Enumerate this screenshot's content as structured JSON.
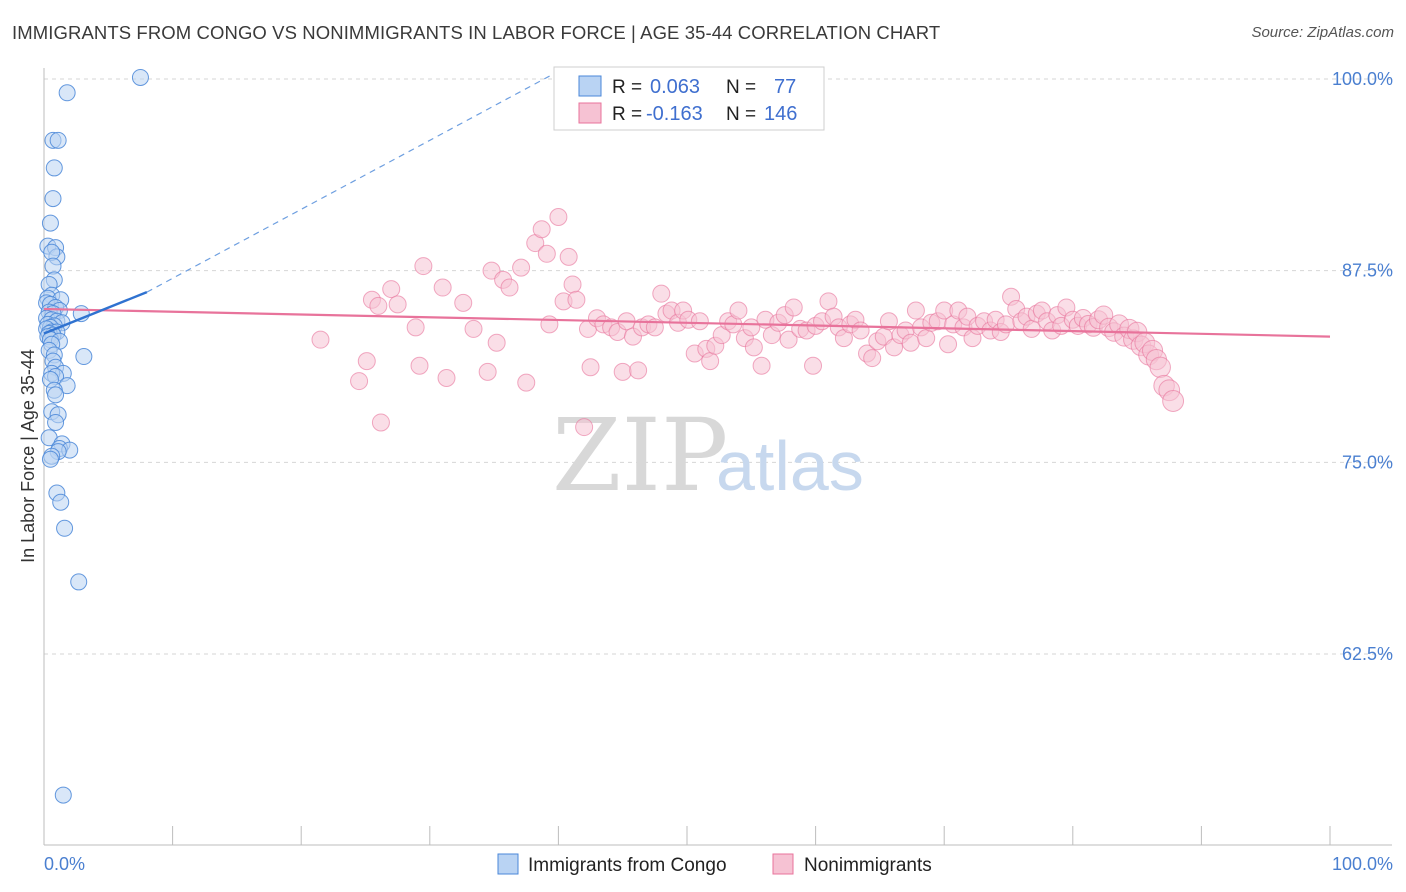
{
  "title": "IMMIGRANTS FROM CONGO VS NONIMMIGRANTS IN LABOR FORCE | AGE 35-44 CORRELATION CHART",
  "source": "Source: ZipAtlas.com",
  "watermark": {
    "zip": "ZIP",
    "atlas": "atlas"
  },
  "colors": {
    "blue": "#4a87d8",
    "blue_fill": "#b9d3f3",
    "pink": "#e8739b",
    "pink_fill": "#f6c2d3",
    "tick": "#4a7fd0"
  },
  "legend": {
    "r_label": "R =",
    "n_label": "N =",
    "rows": [
      {
        "r": "0.063",
        "n": "77",
        "series": "blue"
      },
      {
        "r": "-0.163",
        "n": "146",
        "series": "pink"
      }
    ]
  },
  "chart_data": {
    "type": "scatter",
    "title": "IMMIGRANTS FROM CONGO VS NONIMMIGRANTS IN LABOR FORCE | AGE 35-44 CORRELATION CHART",
    "xlabel": "",
    "ylabel": "In Labor Force | Age 35-44",
    "xlim": [
      0,
      100
    ],
    "ylim": [
      52,
      101.5
    ],
    "x_tick_labels": [
      "0.0%",
      "100.0%"
    ],
    "y_ticks": [
      62.5,
      75.0,
      87.5,
      100.0
    ],
    "y_tick_labels": [
      "62.5%",
      "75.0%",
      "87.5%",
      "100.0%"
    ],
    "grid": true,
    "legend_position": "bottom-center",
    "series": [
      {
        "name": "Immigrants from Congo",
        "color": "#4a87d8",
        "R": 0.063,
        "N": 77,
        "trend": {
          "x": [
            0,
            8
          ],
          "y": [
            83.4,
            86.1
          ],
          "dashed_extension": {
            "x": [
              8,
              40
            ],
            "y": [
              86.1,
              100.5
            ]
          }
        },
        "points": [
          [
            7.5,
            100.1
          ],
          [
            1.8,
            99.1
          ],
          [
            0.7,
            96.0
          ],
          [
            1.1,
            96.0
          ],
          [
            0.8,
            94.2
          ],
          [
            0.7,
            92.2
          ],
          [
            0.5,
            90.6
          ],
          [
            0.3,
            89.1
          ],
          [
            0.9,
            89.0
          ],
          [
            1.0,
            88.4
          ],
          [
            0.6,
            88.7
          ],
          [
            0.7,
            87.8
          ],
          [
            0.8,
            86.9
          ],
          [
            0.4,
            86.6
          ],
          [
            0.6,
            85.9
          ],
          [
            0.3,
            85.7
          ],
          [
            1.3,
            85.6
          ],
          [
            0.2,
            85.4
          ],
          [
            0.5,
            85.3
          ],
          [
            0.9,
            85.1
          ],
          [
            1.2,
            84.9
          ],
          [
            0.4,
            84.8
          ],
          [
            0.7,
            84.7
          ],
          [
            2.9,
            84.7
          ],
          [
            0.2,
            84.4
          ],
          [
            0.6,
            84.3
          ],
          [
            1.0,
            84.2
          ],
          [
            1.4,
            84.1
          ],
          [
            0.3,
            84.0
          ],
          [
            0.8,
            83.9
          ],
          [
            0.5,
            83.8
          ],
          [
            0.2,
            83.7
          ],
          [
            0.6,
            83.5
          ],
          [
            1.0,
            83.5
          ],
          [
            0.4,
            83.4
          ],
          [
            0.7,
            83.3
          ],
          [
            0.3,
            83.2
          ],
          [
            0.5,
            83.0
          ],
          [
            1.2,
            82.9
          ],
          [
            0.6,
            82.7
          ],
          [
            0.4,
            82.3
          ],
          [
            0.8,
            82.0
          ],
          [
            3.1,
            81.9
          ],
          [
            0.7,
            81.6
          ],
          [
            0.9,
            81.2
          ],
          [
            1.5,
            80.8
          ],
          [
            0.6,
            80.8
          ],
          [
            0.9,
            80.6
          ],
          [
            0.5,
            80.4
          ],
          [
            1.8,
            80.0
          ],
          [
            0.8,
            79.7
          ],
          [
            0.9,
            79.4
          ],
          [
            0.6,
            78.3
          ],
          [
            1.1,
            78.1
          ],
          [
            0.9,
            77.6
          ],
          [
            0.4,
            76.6
          ],
          [
            1.4,
            76.2
          ],
          [
            1.2,
            75.9
          ],
          [
            2.0,
            75.8
          ],
          [
            1.1,
            75.7
          ],
          [
            0.6,
            75.4
          ],
          [
            0.5,
            75.2
          ],
          [
            1.0,
            73.0
          ],
          [
            1.3,
            72.4
          ],
          [
            1.6,
            70.7
          ],
          [
            2.7,
            67.2
          ],
          [
            1.5,
            53.3
          ]
        ]
      },
      {
        "name": "Nonimmigrants",
        "color": "#e8739b",
        "R": -0.163,
        "N": 146,
        "trend": {
          "x": [
            0,
            100
          ],
          "y": [
            85.0,
            83.2
          ]
        },
        "points": [
          [
            21.5,
            83.0
          ],
          [
            24.5,
            80.3
          ],
          [
            25.1,
            81.6
          ],
          [
            25.5,
            85.6
          ],
          [
            26.0,
            85.2
          ],
          [
            26.2,
            77.6
          ],
          [
            27.0,
            86.3
          ],
          [
            27.5,
            85.3
          ],
          [
            28.9,
            83.8
          ],
          [
            29.2,
            81.3
          ],
          [
            29.5,
            87.8
          ],
          [
            31.0,
            86.4
          ],
          [
            31.3,
            80.5
          ],
          [
            32.6,
            85.4
          ],
          [
            33.4,
            83.7
          ],
          [
            34.5,
            80.9
          ],
          [
            34.8,
            87.5
          ],
          [
            35.2,
            82.8
          ],
          [
            35.7,
            86.9
          ],
          [
            36.2,
            86.4
          ],
          [
            37.1,
            87.7
          ],
          [
            37.5,
            80.2
          ],
          [
            38.2,
            89.3
          ],
          [
            38.7,
            90.2
          ],
          [
            39.1,
            88.6
          ],
          [
            39.3,
            84.0
          ],
          [
            40.0,
            91.0
          ],
          [
            40.4,
            85.5
          ],
          [
            40.8,
            88.4
          ],
          [
            41.1,
            86.6
          ],
          [
            41.4,
            85.6
          ],
          [
            42.0,
            77.3
          ],
          [
            42.3,
            83.7
          ],
          [
            42.5,
            81.2
          ],
          [
            43.0,
            84.4
          ],
          [
            43.5,
            84.0
          ],
          [
            44.1,
            83.8
          ],
          [
            44.6,
            83.5
          ],
          [
            45.0,
            80.9
          ],
          [
            45.3,
            84.2
          ],
          [
            45.8,
            83.2
          ],
          [
            46.2,
            81.0
          ],
          [
            46.5,
            83.8
          ],
          [
            47.0,
            84.0
          ],
          [
            47.5,
            83.8
          ],
          [
            48.0,
            86.0
          ],
          [
            48.4,
            84.7
          ],
          [
            48.8,
            84.9
          ],
          [
            49.3,
            84.1
          ],
          [
            49.7,
            84.9
          ],
          [
            50.1,
            84.3
          ],
          [
            50.6,
            82.1
          ],
          [
            51.0,
            84.2
          ],
          [
            51.5,
            82.4
          ],
          [
            51.8,
            81.6
          ],
          [
            52.2,
            82.6
          ],
          [
            52.7,
            83.3
          ],
          [
            53.2,
            84.2
          ],
          [
            53.6,
            84.0
          ],
          [
            54.0,
            84.9
          ],
          [
            54.5,
            83.1
          ],
          [
            55.0,
            83.8
          ],
          [
            55.2,
            82.5
          ],
          [
            55.8,
            81.3
          ],
          [
            56.1,
            84.3
          ],
          [
            56.6,
            83.3
          ],
          [
            57.1,
            84.1
          ],
          [
            57.6,
            84.6
          ],
          [
            57.9,
            83.0
          ],
          [
            58.3,
            85.1
          ],
          [
            58.8,
            83.7
          ],
          [
            59.3,
            83.6
          ],
          [
            59.8,
            81.3
          ],
          [
            60.0,
            83.9
          ],
          [
            60.5,
            84.2
          ],
          [
            61.0,
            85.5
          ],
          [
            61.4,
            84.5
          ],
          [
            61.8,
            83.8
          ],
          [
            62.2,
            83.1
          ],
          [
            62.7,
            84.0
          ],
          [
            63.1,
            84.3
          ],
          [
            63.5,
            83.6
          ],
          [
            64.0,
            82.1
          ],
          [
            64.4,
            81.8
          ],
          [
            64.8,
            82.9
          ],
          [
            65.3,
            83.2
          ],
          [
            65.7,
            84.2
          ],
          [
            66.1,
            82.5
          ],
          [
            66.6,
            83.3
          ],
          [
            67.0,
            83.6
          ],
          [
            67.4,
            82.8
          ],
          [
            67.8,
            84.9
          ],
          [
            68.2,
            83.8
          ],
          [
            68.6,
            83.1
          ],
          [
            69.0,
            84.1
          ],
          [
            69.5,
            84.2
          ],
          [
            70.0,
            84.9
          ],
          [
            70.3,
            82.7
          ],
          [
            70.7,
            84.0
          ],
          [
            71.1,
            84.9
          ],
          [
            71.5,
            83.8
          ],
          [
            71.8,
            84.5
          ],
          [
            72.2,
            83.1
          ],
          [
            72.6,
            83.9
          ],
          [
            73.1,
            84.2
          ],
          [
            73.6,
            83.6
          ],
          [
            74.0,
            84.3
          ],
          [
            74.4,
            83.5
          ],
          [
            74.8,
            84.0
          ],
          [
            75.2,
            85.8
          ],
          [
            75.6,
            85.0
          ],
          [
            76.0,
            84.2
          ],
          [
            76.4,
            84.5
          ],
          [
            76.8,
            83.7
          ],
          [
            77.2,
            84.7
          ],
          [
            77.6,
            84.9
          ],
          [
            78.0,
            84.2
          ],
          [
            78.4,
            83.6
          ],
          [
            78.8,
            84.6
          ],
          [
            79.1,
            83.9
          ],
          [
            79.5,
            85.1
          ],
          [
            80.0,
            84.3
          ],
          [
            80.4,
            83.9
          ],
          [
            80.8,
            84.4
          ],
          [
            81.2,
            84.0
          ],
          [
            81.6,
            83.8
          ],
          [
            82.0,
            84.3
          ],
          [
            82.4,
            84.6
          ],
          [
            82.8,
            83.8
          ],
          [
            83.2,
            83.5
          ],
          [
            83.6,
            84.0
          ],
          [
            84.0,
            83.2
          ],
          [
            84.4,
            83.7
          ],
          [
            84.7,
            83.0
          ],
          [
            85.0,
            83.5
          ],
          [
            85.3,
            82.6
          ],
          [
            85.6,
            82.8
          ],
          [
            85.9,
            82.0
          ],
          [
            86.2,
            82.3
          ],
          [
            86.5,
            81.7
          ],
          [
            86.8,
            81.2
          ],
          [
            87.1,
            80.0
          ],
          [
            87.5,
            79.7
          ],
          [
            87.8,
            79.0
          ]
        ]
      }
    ]
  }
}
